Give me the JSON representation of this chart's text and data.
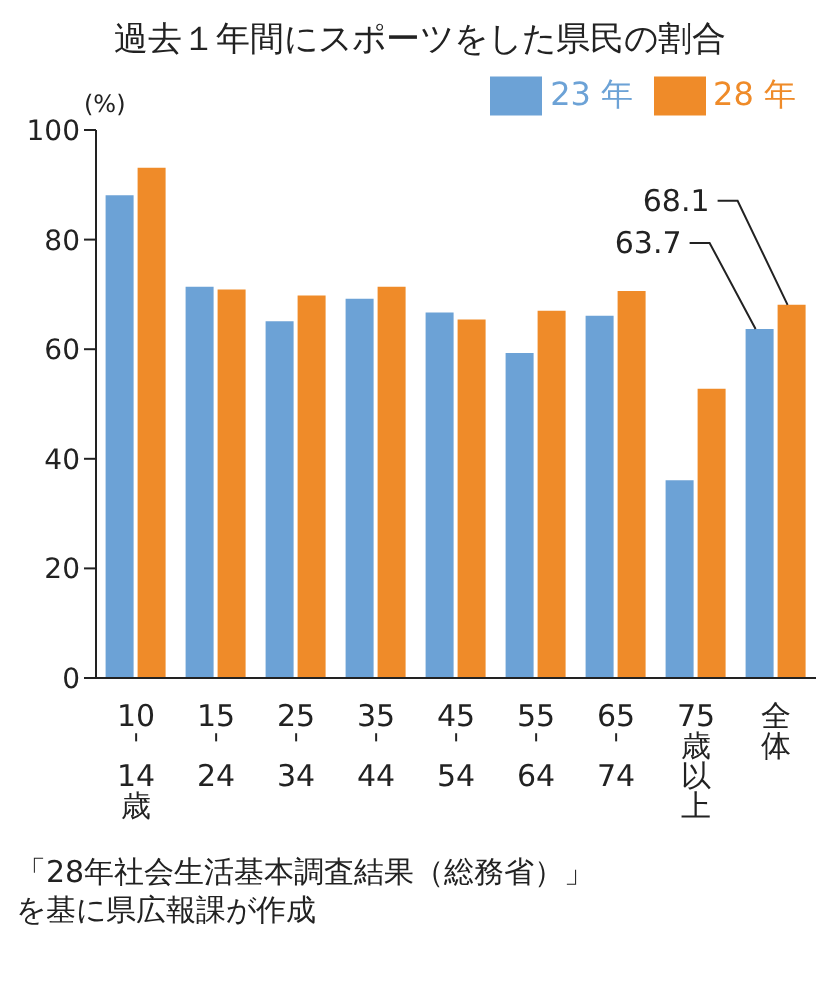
{
  "chart_data": {
    "type": "bar",
    "title": "過去１年間にスポーツをした県民の割合",
    "ylabel": "(%)",
    "categories": [
      "10\nˈ\n14\n歳",
      "15\nˈ\n24",
      "25\nˈ\n34",
      "35\nˈ\n44",
      "45\nˈ\n54",
      "55\nˈ\n64",
      "65\nˈ\n74",
      "75\n歳以上",
      "全体"
    ],
    "series": [
      {
        "name": "23 年",
        "color": "#6ca2d6",
        "values": [
          88.1,
          71.4,
          65.1,
          69.2,
          66.7,
          59.3,
          66.1,
          36.1,
          63.7
        ],
        "value_labels": [
          null,
          null,
          null,
          null,
          null,
          null,
          null,
          null,
          "63.7"
        ]
      },
      {
        "name": "28 年",
        "color": "#ef8b29",
        "values": [
          93.1,
          70.9,
          69.8,
          71.4,
          65.4,
          67.0,
          70.6,
          52.8,
          68.1
        ],
        "value_labels": [
          null,
          null,
          null,
          null,
          null,
          null,
          null,
          null,
          "68.1"
        ]
      }
    ],
    "ylim": [
      0,
      100
    ],
    "yticks": [
      0,
      20,
      40,
      60,
      80,
      100
    ],
    "grid": false,
    "legend": "top right",
    "annotations": [
      "「28年社会生活基本調査結果（総務省）」を基に県広報課が作成"
    ]
  }
}
